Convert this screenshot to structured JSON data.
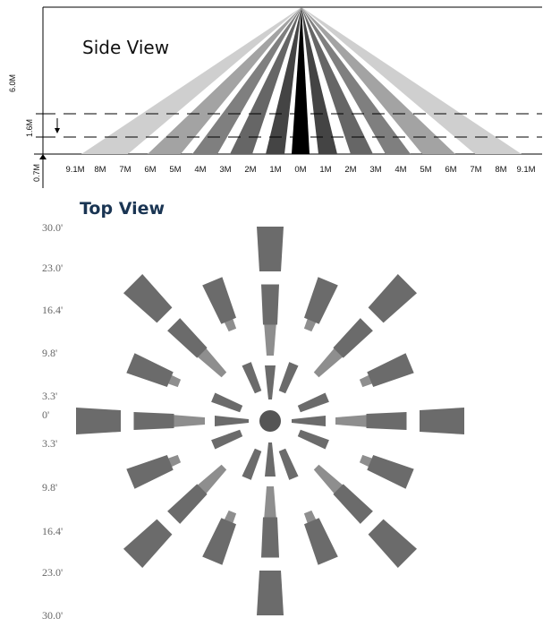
{
  "side_view": {
    "title": "Side View",
    "height_labels": {
      "total": "6.0M",
      "zone": "1.6M",
      "floor_gap": "0.7M"
    },
    "distance_labels": [
      "9.1M",
      "8M",
      "7M",
      "6M",
      "5M",
      "4M",
      "3M",
      "2M",
      "1M",
      "0M",
      "1M",
      "2M",
      "3M",
      "4M",
      "5M",
      "6M",
      "7M",
      "8M",
      "9.1M"
    ],
    "beam_colors": [
      "#000000",
      "#444444",
      "#666666",
      "#7f7f7f",
      "#a3a3a3",
      "#cfcfcf"
    ]
  },
  "top_view": {
    "title": "Top View",
    "range_labels": [
      "30.0'",
      "23.0'",
      "16.4'",
      "9.8'",
      "3.3'",
      "0'",
      "3.3'",
      "9.8'",
      "16.4'",
      "23.0'",
      "30.0'"
    ],
    "sensor_color": "#555555",
    "zone_color_dark": "#6b6b6b",
    "zone_color_light": "#8e8e8e"
  }
}
